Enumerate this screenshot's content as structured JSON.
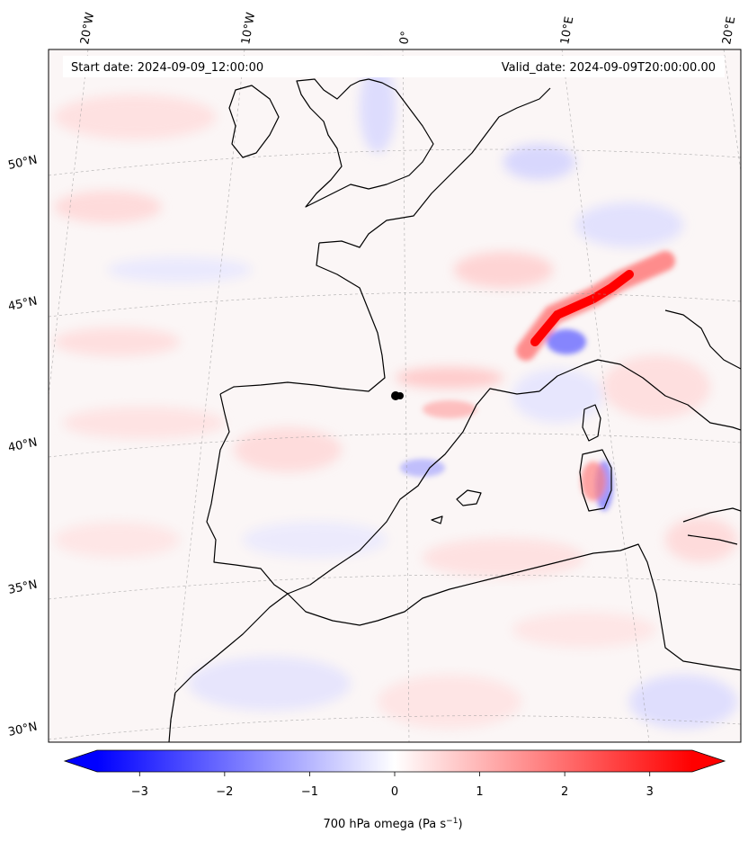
{
  "header": {
    "start_date": "Start date: 2024-09-09_12:00:00",
    "valid_date": "Valid_date: 2024-09-09T20:00:00.00"
  },
  "map": {
    "longitude_labels": [
      "20°W",
      "10°W",
      "0°",
      "10°E",
      "20°E"
    ],
    "latitude_labels": [
      "50°N",
      "45°N",
      "40°N",
      "35°N",
      "30°N"
    ],
    "field": "700 hPa omega",
    "colormap": "bwr",
    "colors": {
      "negative": "#0000ff",
      "zero": "#ffffff",
      "positive": "#ff0000"
    },
    "marker": "black dot near 0°E, 42°N"
  },
  "colorbar": {
    "ticks": [
      "−3",
      "−2",
      "−1",
      "0",
      "1",
      "2",
      "3"
    ],
    "tick_values": [
      -3,
      -2,
      -1,
      0,
      1,
      2,
      3
    ],
    "range": [
      -3.5,
      3.5
    ],
    "extend": "both",
    "label": "700 hPa omega (Pa s",
    "label_sup": "−1",
    "label_end": ")"
  }
}
